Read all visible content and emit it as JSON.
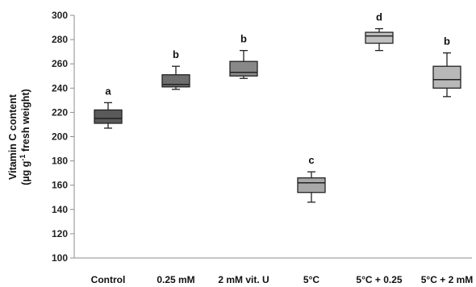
{
  "chart_data": {
    "type": "box",
    "ylabel_line1": "Vitamin C content",
    "ylabel_line2_pre": "(µg g",
    "ylabel_line2_sup": "-1",
    "ylabel_line2_post": " fresh weight)",
    "ylim": [
      100,
      300
    ],
    "yticks": [
      "100",
      "120",
      "140",
      "160",
      "180",
      "200",
      "220",
      "240",
      "260",
      "280",
      "300"
    ],
    "grid": false,
    "categories": [
      "Control",
      "0.25 mM",
      "2 mM vit. U",
      "5°C",
      "5°C + 0.25",
      "5°C + 2 mM"
    ],
    "boxes": [
      {
        "category": "Control",
        "min": 207,
        "q1": 211,
        "median": 215,
        "q3": 222,
        "max": 228,
        "letter": "a",
        "color": "#5a5a5a"
      },
      {
        "category": "0.25 mM",
        "min": 239,
        "q1": 241,
        "median": 243,
        "q3": 251,
        "max": 258,
        "letter": "b",
        "color": "#6e6e6e"
      },
      {
        "category": "2 mM vit. U",
        "min": 248,
        "q1": 250,
        "median": 253,
        "q3": 262,
        "max": 271,
        "letter": "b",
        "color": "#888888"
      },
      {
        "category": "5°C",
        "min": 146,
        "q1": 154,
        "median": 162,
        "q3": 166,
        "max": 171,
        "letter": "c",
        "color": "#a8a8a8"
      },
      {
        "category": "5°C + 0.25",
        "min": 271,
        "q1": 277,
        "median": 283,
        "q3": 286,
        "max": 289,
        "letter": "d",
        "color": "#c0c0c0"
      },
      {
        "category": "5°C + 2 mM",
        "min": 233,
        "q1": 240,
        "median": 247,
        "q3": 258,
        "max": 269,
        "letter": "b",
        "color": "#b8b8b8"
      }
    ]
  }
}
